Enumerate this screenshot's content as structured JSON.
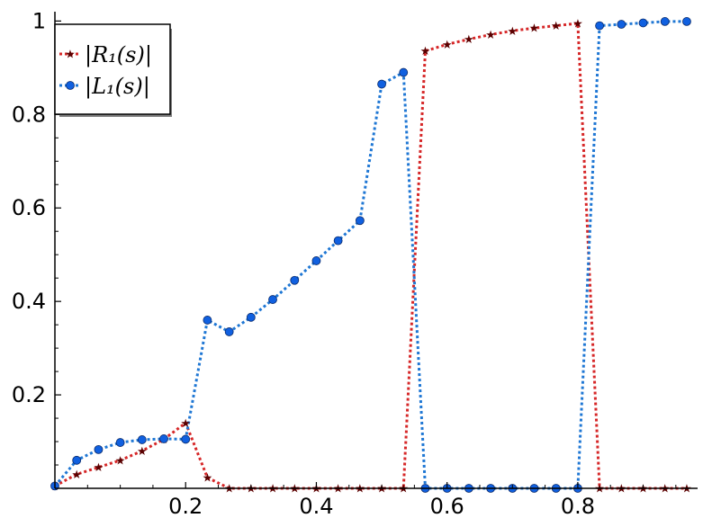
{
  "chart_data": {
    "type": "line",
    "title": "",
    "xlabel": "",
    "ylabel": "",
    "xlim": [
      0,
      0.9833
    ],
    "ylim": [
      0,
      1.02
    ],
    "grid": false,
    "legend_position": "top-left",
    "x_ticks": [
      {
        "value": 0.2,
        "label": "0.2"
      },
      {
        "value": 0.4,
        "label": "0.4"
      },
      {
        "value": 0.6,
        "label": "0.6"
      },
      {
        "value": 0.8,
        "label": "0.8"
      }
    ],
    "y_ticks": [
      {
        "value": 0.2,
        "label": "0.2"
      },
      {
        "value": 0.4,
        "label": "0.4"
      },
      {
        "value": 0.6,
        "label": "0.6"
      },
      {
        "value": 0.8,
        "label": "0.8"
      },
      {
        "value": 1.0,
        "label": "1"
      }
    ],
    "x": [
      0,
      0.0333,
      0.0667,
      0.1,
      0.1333,
      0.1667,
      0.2,
      0.2333,
      0.2667,
      0.3,
      0.3333,
      0.3667,
      0.4,
      0.4333,
      0.4667,
      0.5,
      0.5333,
      0.5667,
      0.6,
      0.6333,
      0.6667,
      0.7,
      0.7333,
      0.7667,
      0.8,
      0.8333,
      0.8667,
      0.9,
      0.9333,
      0.9667
    ],
    "series": [
      {
        "name": "|R₁(s)|",
        "color": "#d62728",
        "marker_color": "#5a0000",
        "marker": "star",
        "values": [
          0.005,
          0.03,
          0.045,
          0.06,
          0.08,
          0.105,
          0.14,
          0.023,
          0.0,
          0.0,
          0.0,
          0.0,
          0.0,
          0.0,
          0.0,
          0.0,
          0.0,
          0.936,
          0.95,
          0.961,
          0.971,
          0.979,
          0.985,
          0.99,
          0.995,
          0.0,
          0.0,
          0.0,
          0.0,
          0.0
        ]
      },
      {
        "name": "|L₁(s)|",
        "color": "#1f77d4",
        "marker_color": "#1060e0",
        "marker": "circle",
        "values": [
          0.005,
          0.06,
          0.083,
          0.098,
          0.104,
          0.106,
          0.105,
          0.36,
          0.335,
          0.366,
          0.404,
          0.445,
          0.487,
          0.53,
          0.573,
          0.865,
          0.89,
          0.0,
          0.0,
          0.0,
          0.0,
          0.0,
          0.0,
          0.0,
          0.0,
          0.99,
          0.993,
          0.996,
          0.999,
          0.999
        ]
      }
    ]
  }
}
